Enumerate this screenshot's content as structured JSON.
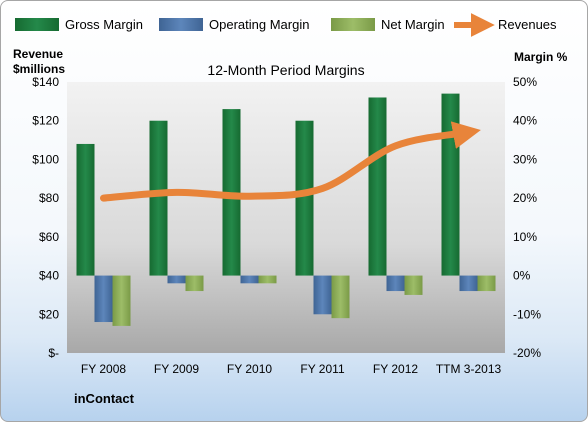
{
  "chart_data": {
    "type": "bar",
    "title": "12-Month Period Margins",
    "categories": [
      "FY 2008",
      "FY 2009",
      "FY 2010",
      "FY 2011",
      "FY 2012",
      "TTM 3-2013"
    ],
    "series": [
      {
        "name": "Gross Margin",
        "axis": "right",
        "values": [
          34,
          40,
          43,
          40,
          46,
          47
        ]
      },
      {
        "name": "Operating Margin",
        "axis": "right",
        "values": [
          -12,
          -2,
          -2,
          -10,
          -4,
          -4
        ]
      },
      {
        "name": "Net Margin",
        "axis": "right",
        "values": [
          -13,
          -4,
          -2,
          -11,
          -5,
          -4
        ]
      }
    ],
    "line_series": {
      "name": "Revenues",
      "axis": "left",
      "values": [
        80,
        83,
        81,
        85,
        107,
        114
      ]
    },
    "left_axis": {
      "label_line1": "Revenue",
      "label_line2": "$millions",
      "ylim": [
        0,
        140
      ],
      "ticks": [
        "$-",
        "$20",
        "$40",
        "$60",
        "$80",
        "$100",
        "$120",
        "$140"
      ]
    },
    "right_axis": {
      "label": "Margin %",
      "ylim": [
        -20,
        50
      ],
      "ticks": [
        "-20%",
        "-10%",
        "0%",
        "10%",
        "20%",
        "30%",
        "40%",
        "50%"
      ]
    },
    "legend_position": "top",
    "grid": false,
    "colors": {
      "Gross Margin": "#1e7b3c",
      "Operating Margin": "#4f77ab",
      "Net Margin": "#8fb05b",
      "Revenues": "#e8843a"
    },
    "footer": "inContact"
  }
}
